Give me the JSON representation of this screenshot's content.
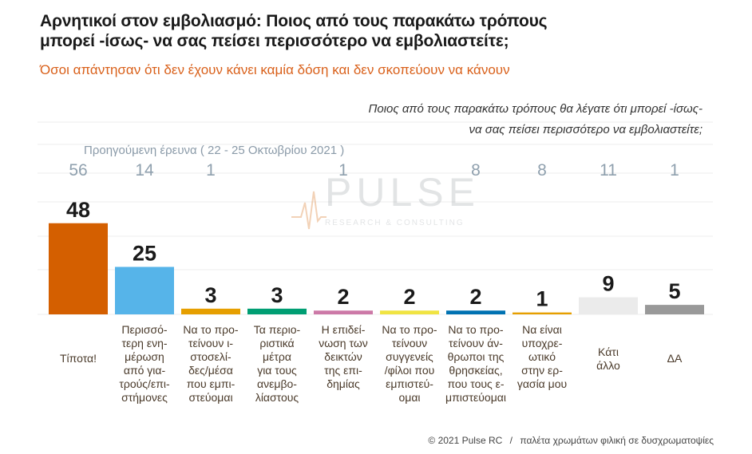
{
  "header": {
    "title_line1": "Αρνητικοί στον εμβολιασμό: Ποιος από τους παρακάτω τρόπους",
    "title_line2": "μπορεί -ίσως- να σας πείσει περισσότερο να εμβολιαστείτε;",
    "subtitle": "Όσοι απάντησαν ότι δεν έχουν κάνει καμία δόση και δεν σκοπεύουν να κάνουν"
  },
  "question": {
    "line1": "Ποιος από τους παρακάτω τρόπους θα λέγατε ότι μπορεί -ίσως-",
    "line2": "να σας πείσει περισσότερο να εμβολιαστείτε;"
  },
  "prev_survey_label": "Προηγούμενη έρευνα  ( 22 - 25 Οκτωβρίου 2021 )",
  "watermark": {
    "brand": "PULSE",
    "tagline": "RESEARCH & CONSULTING"
  },
  "footer": {
    "copyright": "© 2021 Pulse RC",
    "separator": "/",
    "note": "παλέτα χρωμάτων φιλική σε δυσχρωματοψίες"
  },
  "chart_data": {
    "type": "bar",
    "categories": [
      [
        "Τίποτα!"
      ],
      [
        "Περισσό-",
        "τερη ενη-",
        "μέρωση",
        "από για-",
        "τρούς/επι-",
        "στήμονες"
      ],
      [
        "Να το προ-",
        "τείνουν ι-",
        "στοσελί-",
        "δες/μέσα",
        "που εμπι-",
        "στεύομαι"
      ],
      [
        "Τα περιο-",
        "ριστικά",
        "μέτρα",
        "για τους",
        "ανεμβο-",
        "λίαστους"
      ],
      [
        "Η επιδεί-",
        "νωση των",
        "δεικτών",
        "της επι-",
        "δημίας"
      ],
      [
        "Να το προ-",
        "τείνουν",
        "συγγενείς",
        "/φίλοι που",
        "εμπιστεύ-",
        "ομαι"
      ],
      [
        "Να το προ-",
        "τείνουν άν-",
        "θρωποι της",
        "θρησκείας,",
        "που τους ε-",
        "μπιστεύομαι"
      ],
      [
        "Να είναι",
        "υποχρε-",
        "ωτικό",
        "στην ερ-",
        "γασία μου"
      ],
      [
        "Κάτι",
        "άλλο"
      ],
      [
        "ΔΑ"
      ]
    ],
    "values": [
      48,
      25,
      3,
      3,
      2,
      2,
      2,
      1,
      9,
      5
    ],
    "previous_values": [
      56,
      14,
      1,
      null,
      1,
      null,
      8,
      8,
      11,
      1
    ],
    "colors": [
      "#d45f00",
      "#56b4e9",
      "#e69f00",
      "#009e73",
      "#cc79a7",
      "#f0e442",
      "#0072b2",
      "#e69f00",
      "#ebebeb",
      "#999999"
    ],
    "ylim": [
      0,
      60
    ],
    "gridlines": true
  }
}
